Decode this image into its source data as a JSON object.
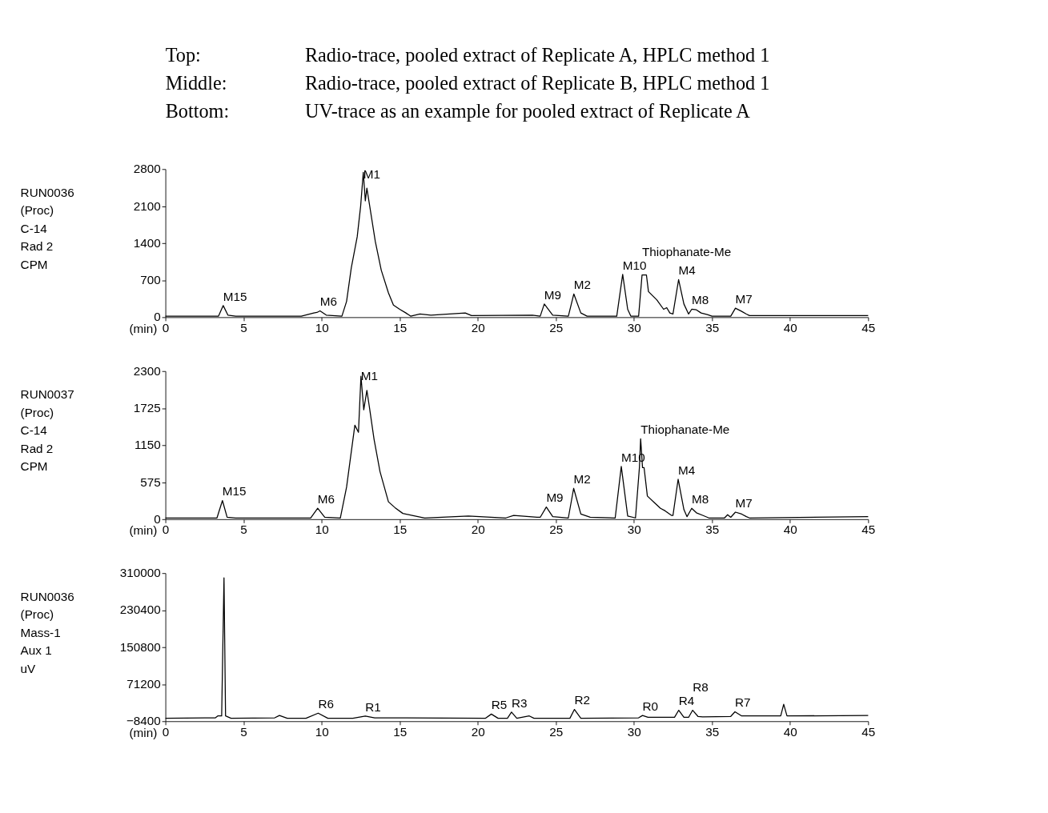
{
  "chart_data": [
    {
      "type": "line",
      "title": "Top:\tRadio-trace, pooled extract of Replicate A, HPLC method 1\nMiddle:\tRadio-trace, pooled extract of Replicate B, HPLC method 1\nBottom:\tUV-trace as an example for pooled extract of Replicate A",
      "xlabel": "(min)",
      "ylabel": "RUN0036\n(Proc)\nC-14\nRad 2\n\nCPM",
      "color": "#000000",
      "xlim": [
        0,
        45
      ],
      "xticks": [
        0,
        5,
        10,
        15,
        20,
        25,
        30,
        35,
        40,
        45
      ],
      "ylim": [
        0,
        2800
      ],
      "yticks": [
        0,
        700,
        1400,
        2100,
        2800
      ],
      "x": [
        0,
        3.4,
        3.7,
        4.0,
        4.5,
        8.7,
        9.5,
        9.7,
        9.9,
        10.3,
        11.3,
        11.6,
        11.9,
        12.28,
        12.5,
        12.67,
        12.8,
        12.9,
        13.44,
        13.82,
        14.28,
        14.6,
        15.0,
        15.4,
        15.7,
        16.3,
        17,
        19.2,
        19.6,
        23.5,
        24.0,
        24.26,
        24.8,
        25.8,
        26.15,
        26.6,
        27.0,
        28.9,
        29.28,
        29.6,
        29.8,
        30.3,
        30.52,
        30.8,
        30.93,
        31.46,
        31.9,
        32.1,
        32.3,
        32.5,
        32.86,
        33.2,
        33.5,
        33.7,
        34.0,
        34.3,
        34.7,
        35.0,
        36.2,
        36.5,
        36.9,
        37.2,
        37.4,
        45
      ],
      "values": [
        20,
        20,
        220,
        40,
        20,
        20,
        80,
        90,
        120,
        40,
        20,
        300,
        930,
        1520,
        2100,
        2740,
        2200,
        2440,
        1430,
        890,
        460,
        230,
        150,
        80,
        20,
        60,
        40,
        80,
        30,
        40,
        20,
        250,
        40,
        20,
        440,
        80,
        20,
        20,
        810,
        150,
        20,
        20,
        800,
        800,
        485,
        330,
        150,
        180,
        80,
        60,
        710,
        250,
        60,
        150,
        140,
        80,
        50,
        20,
        20,
        170,
        110,
        60,
        30,
        30
      ],
      "annotations": [
        {
          "text": "M15",
          "x": 3.7,
          "y": 220
        },
        {
          "text": "M6",
          "x": 9.9,
          "y": 120
        },
        {
          "text": "M1",
          "x": 12.67,
          "y": 2740
        },
        {
          "text": "M9",
          "x": 24.26,
          "y": 250
        },
        {
          "text": "M2",
          "x": 26.15,
          "y": 440
        },
        {
          "text": "M10",
          "x": 29.28,
          "y": 810
        },
        {
          "text": "Thiophanate-Me",
          "x": 30.52,
          "y": 800
        },
        {
          "text": "M4",
          "x": 32.86,
          "y": 710
        },
        {
          "text": "M8",
          "x": 33.7,
          "y": 150
        },
        {
          "text": "M7",
          "x": 36.5,
          "y": 170
        }
      ]
    },
    {
      "type": "line",
      "xlabel": "(min)",
      "ylabel": "RUN0037\n(Proc)\nC-14\nRad 2\n\nCPM",
      "color": "#000000",
      "xlim": [
        0,
        45
      ],
      "xticks": [
        0,
        5,
        10,
        15,
        20,
        25,
        30,
        35,
        40,
        45
      ],
      "ylim": [
        0,
        2300
      ],
      "yticks": [
        0,
        575,
        1150,
        1725,
        2300
      ],
      "x": [
        0,
        3.3,
        3.65,
        3.95,
        4.5,
        9.3,
        9.75,
        10.2,
        11.2,
        11.6,
        11.82,
        12.13,
        12.36,
        12.52,
        12.7,
        12.9,
        13.05,
        13.36,
        13.74,
        14.28,
        14.7,
        15.2,
        15.8,
        16.6,
        19.4,
        21.8,
        22.3,
        23.8,
        24.0,
        24.39,
        24.8,
        25.8,
        26.14,
        26.6,
        27.2,
        28.8,
        29.19,
        29.6,
        30.1,
        30.35,
        30.43,
        30.55,
        30.65,
        30.86,
        31.3,
        31.7,
        32.0,
        32.4,
        32.5,
        32.83,
        33.2,
        33.4,
        33.7,
        34.0,
        34.4,
        34.8,
        35.8,
        36.0,
        36.2,
        36.5,
        36.9,
        37.2,
        37.4,
        45
      ],
      "values": [
        20,
        20,
        290,
        30,
        20,
        20,
        170,
        30,
        20,
        500,
        900,
        1460,
        1350,
        2220,
        1700,
        2000,
        1760,
        1240,
        740,
        270,
        180,
        90,
        60,
        20,
        50,
        20,
        60,
        30,
        30,
        190,
        40,
        20,
        480,
        80,
        30,
        20,
        820,
        50,
        20,
        800,
        1250,
        800,
        800,
        360,
        260,
        170,
        130,
        60,
        60,
        620,
        150,
        40,
        170,
        100,
        60,
        20,
        20,
        70,
        30,
        110,
        80,
        40,
        20,
        40
      ],
      "annotations": [
        {
          "text": "M15",
          "x": 3.65,
          "y": 290
        },
        {
          "text": "M6",
          "x": 9.75,
          "y": 170
        },
        {
          "text": "M1",
          "x": 12.52,
          "y": 2220
        },
        {
          "text": "M9",
          "x": 24.39,
          "y": 190
        },
        {
          "text": "M2",
          "x": 26.14,
          "y": 480
        },
        {
          "text": "M10",
          "x": 29.19,
          "y": 820
        },
        {
          "text": "Thiophanate-Me",
          "x": 30.43,
          "y": 1250
        },
        {
          "text": "M4",
          "x": 32.83,
          "y": 620
        },
        {
          "text": "M8",
          "x": 33.7,
          "y": 170
        },
        {
          "text": "M7",
          "x": 36.5,
          "y": 110
        }
      ]
    },
    {
      "type": "line",
      "xlabel": "(min)",
      "ylabel": "RUN0036\n(Proc)\nMass-1\nAux 1\n\nuV",
      "color": "#000000",
      "xlim": [
        0,
        45
      ],
      "xticks": [
        0,
        5,
        10,
        15,
        20,
        25,
        30,
        35,
        40,
        45
      ],
      "ylim": [
        -8400,
        310000
      ],
      "yticks": [
        -8400,
        71200,
        150800,
        230400,
        310000
      ],
      "x": [
        0,
        3.2,
        3.35,
        3.6,
        3.75,
        3.85,
        4.2,
        7.0,
        7.3,
        7.8,
        9.0,
        9.78,
        10.4,
        12.0,
        12.8,
        13.4,
        20.5,
        20.87,
        21.3,
        21.9,
        22.16,
        22.5,
        23.3,
        23.6,
        25.9,
        26.19,
        26.6,
        30.3,
        30.55,
        30.9,
        32.6,
        32.87,
        33.2,
        33.5,
        33.76,
        34.1,
        34.4,
        36.2,
        36.47,
        36.9,
        39.4,
        39.59,
        39.8,
        45
      ],
      "values": [
        -2000,
        -1000,
        3000,
        3000,
        300000,
        3000,
        -2000,
        -1000,
        4000,
        -2000,
        -2000,
        9000,
        -2000,
        -2000,
        2500,
        -1000,
        -2000,
        7000,
        -2000,
        -2000,
        11400,
        -2000,
        3000,
        -2000,
        -2000,
        17000,
        -2000,
        -1000,
        4000,
        0,
        0,
        15300,
        0,
        0,
        15300,
        2000,
        1000,
        2000,
        12000,
        3000,
        3000,
        28000,
        3000,
        4000
      ],
      "annotations": [
        {
          "text": "R6",
          "x": 9.78,
          "y": 9000
        },
        {
          "text": "R1",
          "x": 12.8,
          "y": 2500
        },
        {
          "text": "R5",
          "x": 20.87,
          "y": 7000
        },
        {
          "text": "R3",
          "x": 22.16,
          "y": 11400
        },
        {
          "text": "R2",
          "x": 26.19,
          "y": 17000
        },
        {
          "text": "R0",
          "x": 30.55,
          "y": 4000
        },
        {
          "text": "R4",
          "x": 32.87,
          "y": 15300
        },
        {
          "text": "R8",
          "x": 33.76,
          "y": 15300
        },
        {
          "text": "R7",
          "x": 36.47,
          "y": 12000
        }
      ]
    }
  ]
}
